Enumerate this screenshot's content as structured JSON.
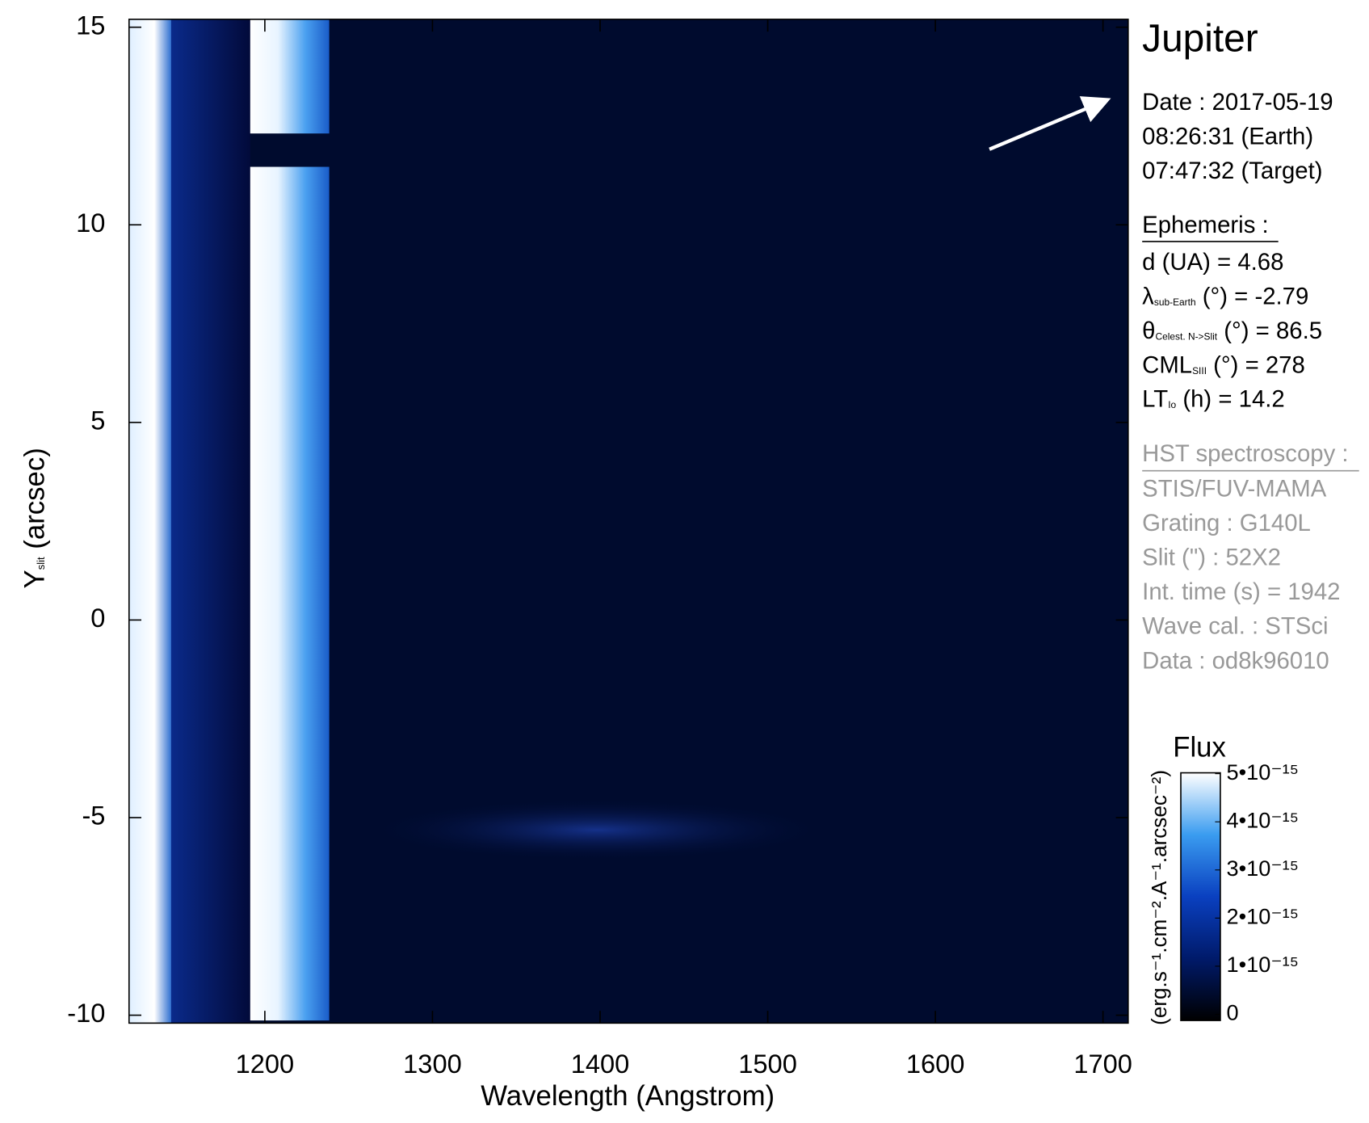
{
  "chart_data": {
    "type": "image",
    "title": "Jupiter",
    "xlabel": "Wavelength (Angstrom)",
    "ylabel": {
      "text": "Y",
      "sub": "slit",
      "unit": " (arcsec)"
    },
    "xlim": [
      1119,
      1715
    ],
    "xticks": [
      1200,
      1300,
      1400,
      1500,
      1600,
      1700
    ],
    "ylim": [
      -10.2,
      15.2
    ],
    "yticks": [
      -10,
      -5,
      0,
      5,
      10,
      15
    ],
    "date": [
      "Date : 2017-05-19",
      "08:26:31 (Earth)",
      "07:47:32 (Target)"
    ],
    "ephemeris_title": "Ephemeris :",
    "ephemeris": [
      {
        "symbol": "d (UA)",
        "sub": "",
        "rest": "",
        "value": "    = 4.68"
      },
      {
        "symbol": "λ",
        "sub": "sub-Earth",
        "rest": " (°)",
        "value": "  = -2.79"
      },
      {
        "symbol": "θ",
        "sub": "Celest. N->Slit",
        "rest": " (°)",
        "value": " = 86.5"
      },
      {
        "symbol": "CML",
        "sub": "SIII",
        "rest": " (°)",
        "value": " = 278"
      },
      {
        "symbol": "LT",
        "sub": "Io",
        "rest": " (h)",
        "value": " = 14.2"
      }
    ],
    "hst_title": "HST spectroscopy :",
    "hst": [
      "STIS/FUV-MAMA",
      "Grating : G140L",
      "Slit (\") : 52X2",
      "Int. time (s) = 1942",
      "Wave cal. : STSci",
      "Data : od8k96010"
    ],
    "colorbar": {
      "title": "Flux",
      "label": "(erg.s⁻¹.cm⁻².A⁻¹.arcsec⁻²)",
      "clim": [
        0,
        5e-15
      ],
      "ticks": [
        {
          "value": 0,
          "label": "0"
        },
        {
          "value": 1e-15,
          "label": "1•10⁻¹⁵"
        },
        {
          "value": 2e-15,
          "label": "2•10⁻¹⁵"
        },
        {
          "value": 3e-15,
          "label": "3•10⁻¹⁵"
        },
        {
          "value": 4e-15,
          "label": "4•10⁻¹⁵"
        },
        {
          "value": 5e-15,
          "label": "5•10⁻¹⁵"
        }
      ]
    }
  }
}
